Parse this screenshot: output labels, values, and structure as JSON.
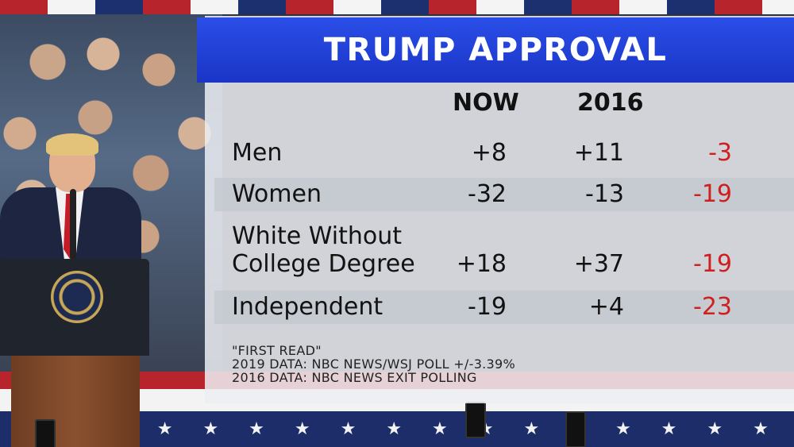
{
  "title": "TRUMP APPROVAL",
  "columns": {
    "now": "NOW",
    "year": "2016"
  },
  "rows": [
    {
      "label_lines": [
        "Men"
      ],
      "now": "+8",
      "year2016": "+11",
      "change": "-3"
    },
    {
      "label_lines": [
        "Women"
      ],
      "now": "-32",
      "year2016": "-13",
      "change": "-19"
    },
    {
      "label_lines": [
        "White Without",
        "College Degree"
      ],
      "now": "+18",
      "year2016": "+37",
      "change": "-19"
    },
    {
      "label_lines": [
        "Independent"
      ],
      "now": "-19",
      "year2016": "+4",
      "change": "-23"
    }
  ],
  "sources": [
    "\"FIRST READ\"",
    "2019 DATA: NBC NEWS/WSJ POLL +/-3.39%",
    "2016 DATA: NBC NEWS EXIT POLLING"
  ],
  "colors": {
    "title_bar": "#1f3fd8",
    "negative_change": "#cf1f1f",
    "text": "#121212"
  }
}
